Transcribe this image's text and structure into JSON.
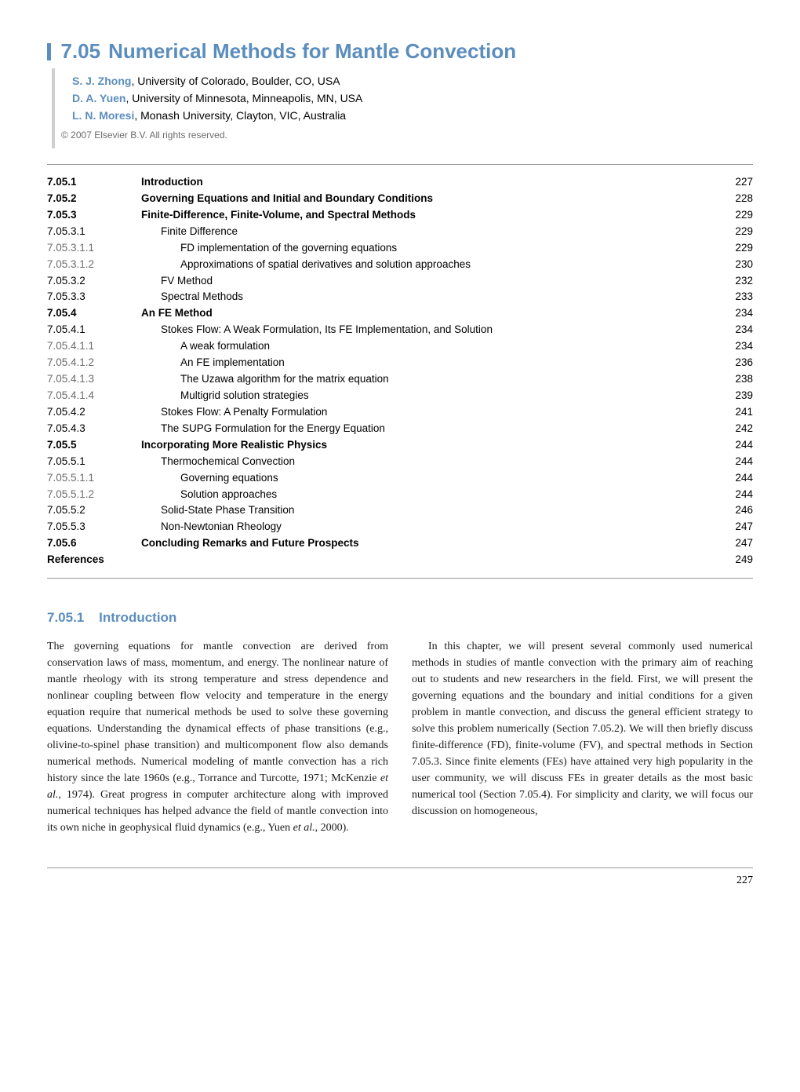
{
  "chapter": {
    "number": "7.05",
    "title": "Numerical Methods for Mantle Convection"
  },
  "authors": [
    {
      "name": "S. J. Zhong",
      "affil": ", University of Colorado, Boulder, CO, USA"
    },
    {
      "name": "D. A. Yuen",
      "affil": ", University of Minnesota, Minneapolis, MN, USA"
    },
    {
      "name": "L. N. Moresi",
      "affil": ", Monash University, Clayton, VIC, Australia"
    }
  ],
  "copyright": "© 2007 Elsevier B.V. All rights reserved.",
  "toc": [
    {
      "num": "7.05.1",
      "label": "Introduction",
      "page": "227",
      "level": 0
    },
    {
      "num": "7.05.2",
      "label": "Governing Equations and Initial and Boundary Conditions",
      "page": "228",
      "level": 0
    },
    {
      "num": "7.05.3",
      "label": "Finite-Difference, Finite-Volume, and Spectral Methods",
      "page": "229",
      "level": 0
    },
    {
      "num": "7.05.3.1",
      "label": "Finite Difference",
      "page": "229",
      "level": 1
    },
    {
      "num": "7.05.3.1.1",
      "label": "FD implementation of the governing equations",
      "page": "229",
      "level": 2,
      "faded": true
    },
    {
      "num": "7.05.3.1.2",
      "label": "Approximations of spatial derivatives and solution approaches",
      "page": "230",
      "level": 2,
      "faded": true
    },
    {
      "num": "7.05.3.2",
      "label": "FV Method",
      "page": "232",
      "level": 1
    },
    {
      "num": "7.05.3.3",
      "label": "Spectral Methods",
      "page": "233",
      "level": 1
    },
    {
      "num": "7.05.4",
      "label": "An FE Method",
      "page": "234",
      "level": 0
    },
    {
      "num": "7.05.4.1",
      "label": "Stokes Flow: A Weak Formulation, Its FE Implementation, and Solution",
      "page": "234",
      "level": 1
    },
    {
      "num": "7.05.4.1.1",
      "label": "A weak formulation",
      "page": "234",
      "level": 2,
      "faded": true
    },
    {
      "num": "7.05.4.1.2",
      "label": "An FE implementation",
      "page": "236",
      "level": 2,
      "faded": true
    },
    {
      "num": "7.05.4.1.3",
      "label": "The Uzawa algorithm for the matrix equation",
      "page": "238",
      "level": 2,
      "faded": true
    },
    {
      "num": "7.05.4.1.4",
      "label": "Multigrid solution strategies",
      "page": "239",
      "level": 2,
      "faded": true
    },
    {
      "num": "7.05.4.2",
      "label": "Stokes Flow: A Penalty Formulation",
      "page": "241",
      "level": 1
    },
    {
      "num": "7.05.4.3",
      "label": "The SUPG Formulation for the Energy Equation",
      "page": "242",
      "level": 1
    },
    {
      "num": "7.05.5",
      "label": "Incorporating More Realistic Physics",
      "page": "244",
      "level": 0
    },
    {
      "num": "7.05.5.1",
      "label": "Thermochemical Convection",
      "page": "244",
      "level": 1
    },
    {
      "num": "7.05.5.1.1",
      "label": "Governing equations",
      "page": "244",
      "level": 2,
      "faded": true
    },
    {
      "num": "7.05.5.1.2",
      "label": "Solution approaches",
      "page": "244",
      "level": 2,
      "faded": true
    },
    {
      "num": "7.05.5.2",
      "label": "Solid-State Phase Transition",
      "page": "246",
      "level": 1
    },
    {
      "num": "7.05.5.3",
      "label": "Non-Newtonian Rheology",
      "page": "247",
      "level": 1
    },
    {
      "num": "7.05.6",
      "label": "Concluding Remarks and Future Prospects",
      "page": "247",
      "level": 0
    },
    {
      "num": "References",
      "label": "",
      "page": "249",
      "level": 0
    }
  ],
  "section": {
    "heading_num": "7.05.1",
    "heading_title": "Introduction"
  },
  "body": {
    "col1": "The governing equations for mantle convection are derived from conservation laws of mass, momentum, and energy. The nonlinear nature of mantle rheology with its strong temperature and stress dependence and nonlinear coupling between flow velocity and temperature in the energy equation require that numerical methods be used to solve these governing equations. Understanding the dynamical effects of phase transitions (e.g., olivine-to-spinel phase transition) and multicomponent flow also demands numerical methods. Numerical modeling of mantle convection has a rich history since the late 1960s (e.g., Torrance and Turcotte, 1971; McKenzie ",
    "col1_ital1": "et al.",
    "col1_after1": ", 1974). Great progress in computer architecture along with improved numerical techniques has helped advance ",
    "col2a": "the field of mantle convection into its own niche in geophysical fluid dynamics (e.g., Yuen ",
    "col2_ital1": "et al.",
    "col2_after1": ", 2000).",
    "col2b": "In this chapter, we will present several commonly used numerical methods in studies of mantle convection with the primary aim of reaching out to students and new researchers in the field. First, we will present the governing equations and the boundary and initial conditions for a given problem in mantle convection, and discuss the general efficient strategy to solve this problem numerically (Section 7.05.2). We will then briefly discuss finite-difference (FD), finite-volume (FV), and spectral methods in Section 7.05.3. Since finite elements (FEs) have attained very high popularity in the user community, we will discuss FEs in greater details as the most basic numerical tool (Section 7.05.4). For simplicity and clarity, we will focus our discussion on homogeneous,"
  },
  "page_number": "227"
}
